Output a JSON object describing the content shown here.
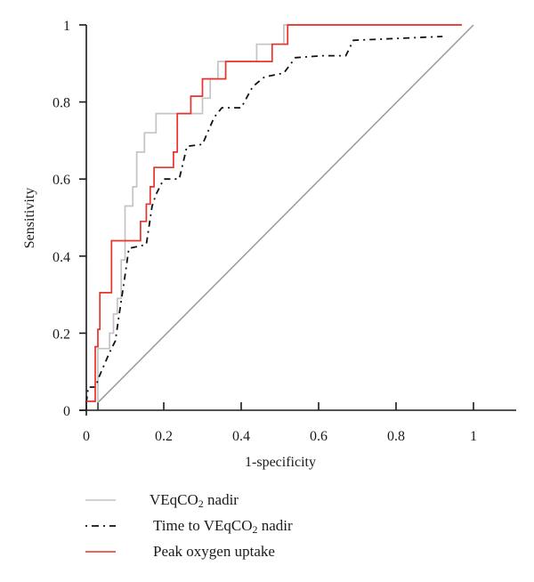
{
  "chart_data": {
    "type": "line",
    "title": "",
    "xlabel": "1-specificity",
    "ylabel": "Sensitivity",
    "xlim": [
      0,
      1
    ],
    "ylim": [
      0,
      1
    ],
    "xticks": [
      "0",
      "0.2",
      "0.4",
      "0.6",
      "0.8",
      "1"
    ],
    "yticks": [
      "0",
      "0.2",
      "0.4",
      "0.6",
      "0.8",
      "1"
    ],
    "grid": false,
    "legend_position": "bottom-left, below plot",
    "series": [
      {
        "name": "VEqCO2 nadir",
        "label_main": "VEqCO",
        "label_sub": "2",
        "label_tail": " nadir",
        "color": "#c4c4c4",
        "style": "solid",
        "step": true,
        "points": [
          [
            0.03,
            0.02
          ],
          [
            0.03,
            0.16
          ],
          [
            0.06,
            0.16
          ],
          [
            0.06,
            0.2
          ],
          [
            0.07,
            0.2
          ],
          [
            0.07,
            0.25
          ],
          [
            0.08,
            0.25
          ],
          [
            0.08,
            0.29
          ],
          [
            0.09,
            0.29
          ],
          [
            0.09,
            0.39
          ],
          [
            0.1,
            0.39
          ],
          [
            0.1,
            0.53
          ],
          [
            0.12,
            0.53
          ],
          [
            0.12,
            0.58
          ],
          [
            0.13,
            0.58
          ],
          [
            0.13,
            0.67
          ],
          [
            0.15,
            0.67
          ],
          [
            0.15,
            0.72
          ],
          [
            0.18,
            0.72
          ],
          [
            0.18,
            0.77
          ],
          [
            0.3,
            0.77
          ],
          [
            0.3,
            0.81
          ],
          [
            0.32,
            0.81
          ],
          [
            0.32,
            0.86
          ],
          [
            0.34,
            0.86
          ],
          [
            0.34,
            0.905
          ],
          [
            0.44,
            0.905
          ],
          [
            0.44,
            0.95
          ],
          [
            0.51,
            0.95
          ],
          [
            0.51,
            1.0
          ],
          [
            0.97,
            1.0
          ]
        ]
      },
      {
        "name": "Time to VEqCO2 nadir",
        "label_main": "Time to VEqCO",
        "label_sub": "2",
        "label_tail": " nadir",
        "color": "#111111",
        "style": "dashdot",
        "step": false,
        "points": [
          [
            0.0,
            0.02
          ],
          [
            0.005,
            0.06
          ],
          [
            0.025,
            0.06
          ],
          [
            0.03,
            0.08
          ],
          [
            0.06,
            0.15
          ],
          [
            0.075,
            0.18
          ],
          [
            0.085,
            0.25
          ],
          [
            0.1,
            0.35
          ],
          [
            0.11,
            0.42
          ],
          [
            0.155,
            0.43
          ],
          [
            0.17,
            0.53
          ],
          [
            0.18,
            0.56
          ],
          [
            0.2,
            0.6
          ],
          [
            0.24,
            0.6
          ],
          [
            0.26,
            0.685
          ],
          [
            0.3,
            0.69
          ],
          [
            0.33,
            0.76
          ],
          [
            0.35,
            0.785
          ],
          [
            0.4,
            0.785
          ],
          [
            0.43,
            0.84
          ],
          [
            0.46,
            0.865
          ],
          [
            0.51,
            0.875
          ],
          [
            0.54,
            0.915
          ],
          [
            0.61,
            0.92
          ],
          [
            0.67,
            0.92
          ],
          [
            0.69,
            0.96
          ],
          [
            0.92,
            0.97
          ]
        ]
      },
      {
        "name": "Peak oxygen uptake",
        "label_main": "Peak oxygen uptake",
        "label_sub": "",
        "label_tail": "",
        "color": "#e8322a",
        "style": "solid",
        "step": true,
        "points": [
          [
            0.0,
            0.023
          ],
          [
            0.023,
            0.023
          ],
          [
            0.023,
            0.165
          ],
          [
            0.03,
            0.165
          ],
          [
            0.03,
            0.21
          ],
          [
            0.035,
            0.21
          ],
          [
            0.035,
            0.305
          ],
          [
            0.065,
            0.305
          ],
          [
            0.065,
            0.44
          ],
          [
            0.14,
            0.44
          ],
          [
            0.14,
            0.49
          ],
          [
            0.155,
            0.49
          ],
          [
            0.155,
            0.535
          ],
          [
            0.165,
            0.535
          ],
          [
            0.165,
            0.58
          ],
          [
            0.175,
            0.58
          ],
          [
            0.175,
            0.63
          ],
          [
            0.225,
            0.63
          ],
          [
            0.225,
            0.67
          ],
          [
            0.235,
            0.67
          ],
          [
            0.235,
            0.77
          ],
          [
            0.27,
            0.77
          ],
          [
            0.27,
            0.815
          ],
          [
            0.3,
            0.815
          ],
          [
            0.3,
            0.86
          ],
          [
            0.36,
            0.86
          ],
          [
            0.36,
            0.905
          ],
          [
            0.48,
            0.905
          ],
          [
            0.48,
            0.95
          ],
          [
            0.52,
            0.95
          ],
          [
            0.52,
            1.0
          ],
          [
            0.97,
            1.0
          ]
        ]
      }
    ],
    "reference_line": {
      "name": "chance-diagonal",
      "color": "#9a9a9a",
      "points": [
        [
          0.03,
          0.02
        ],
        [
          1.0,
          1.0
        ]
      ]
    }
  }
}
